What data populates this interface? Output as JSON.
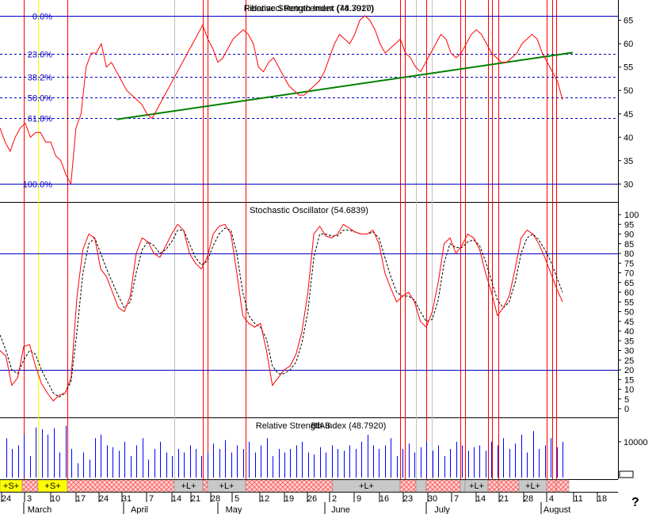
{
  "chart_data": [
    {
      "type": "line",
      "title": "Relative Strength Index (48.7920)",
      "overlay_title": "Fibonacci Retracement (74.3017)",
      "ylim": [
        27,
        68
      ],
      "y_ticks": [
        30,
        35,
        40,
        45,
        50,
        55,
        60,
        65
      ],
      "fib_levels": [
        {
          "label": "0.0%",
          "value": 66.0
        },
        {
          "label": "23.6%",
          "value": 57.9
        },
        {
          "label": "38.2%",
          "value": 52.9
        },
        {
          "label": "50.0%",
          "value": 48.6
        },
        {
          "label": "61.8%",
          "value": 44.1
        },
        {
          "label": "100.0%",
          "value": 30.1
        }
      ],
      "trendline": {
        "start_index": 23,
        "start_value": 43.8,
        "end_index": 113,
        "end_value": 58.1
      },
      "series": [
        {
          "color": "#ff0000",
          "values": [
            42,
            39,
            37,
            40,
            42,
            43,
            40,
            41,
            41,
            39,
            39,
            36,
            35,
            32,
            30,
            42,
            45,
            55,
            58,
            58,
            60,
            55,
            56,
            54,
            52,
            50,
            49,
            48,
            47,
            45,
            44,
            46,
            48,
            50,
            52,
            54,
            56,
            58,
            60,
            62,
            64,
            61,
            59,
            56,
            57,
            59,
            61,
            62,
            63,
            62,
            60,
            55,
            54,
            56,
            57,
            55,
            53,
            51,
            50,
            49,
            49,
            50,
            51,
            52,
            54,
            57,
            60,
            62,
            61,
            60,
            62,
            65,
            66,
            65,
            63,
            60,
            58,
            59,
            60,
            61,
            58,
            57,
            55,
            54,
            56,
            58,
            60,
            62,
            61,
            58,
            57,
            58,
            60,
            62,
            63,
            62,
            60,
            58,
            57,
            56,
            56,
            57,
            58,
            60,
            61,
            62,
            61,
            58,
            56,
            54,
            52,
            48
          ]
        }
      ]
    },
    {
      "type": "line",
      "title": "Stochastic Oscillator (54.6839)",
      "ylim": [
        0,
        100
      ],
      "y_ticks": [
        0,
        5,
        10,
        15,
        20,
        25,
        30,
        35,
        40,
        45,
        50,
        55,
        60,
        65,
        70,
        75,
        80,
        85,
        90,
        95,
        100
      ],
      "levels": [
        20,
        80
      ],
      "series": [
        {
          "color": "#ff0000",
          "style": "solid",
          "values": [
            30,
            27,
            12,
            16,
            32,
            33,
            22,
            13,
            8,
            4,
            7,
            8,
            16,
            58,
            82,
            90,
            88,
            72,
            68,
            60,
            52,
            50,
            58,
            80,
            88,
            86,
            80,
            78,
            84,
            90,
            95,
            92,
            80,
            75,
            72,
            78,
            90,
            94,
            95,
            90,
            70,
            48,
            44,
            42,
            44,
            30,
            12,
            16,
            20,
            22,
            28,
            40,
            60,
            90,
            94,
            89,
            88,
            90,
            95,
            93,
            91,
            90,
            90,
            92,
            85,
            70,
            62,
            55,
            58,
            60,
            55,
            45,
            42,
            50,
            65,
            85,
            88,
            80,
            84,
            90,
            88,
            82,
            70,
            60,
            48,
            52,
            58,
            72,
            88,
            92,
            90,
            85,
            78,
            70,
            62,
            55
          ]
        },
        {
          "color": "#000000",
          "style": "dashed",
          "values": [
            38,
            30,
            20,
            18,
            25,
            30,
            28,
            20,
            14,
            8,
            6,
            8,
            14,
            40,
            70,
            85,
            88,
            80,
            72,
            65,
            58,
            52,
            55,
            70,
            82,
            86,
            84,
            80,
            82,
            86,
            92,
            92,
            85,
            78,
            74,
            76,
            84,
            90,
            93,
            92,
            80,
            60,
            48,
            44,
            42,
            36,
            22,
            18,
            18,
            20,
            24,
            34,
            50,
            78,
            90,
            90,
            89,
            89,
            92,
            92,
            91,
            90,
            90,
            91,
            88,
            78,
            68,
            60,
            58,
            58,
            56,
            50,
            45,
            46,
            56,
            75,
            85,
            83,
            83,
            86,
            87,
            84,
            76,
            66,
            56,
            52,
            55,
            65,
            80,
            88,
            90,
            87,
            82,
            76,
            68,
            60
          ]
        }
      ]
    },
    {
      "type": "bar",
      "title": "Relative Strength Index (48.7920)",
      "overlay_title": "BIAS",
      "y_ticks": [
        10000
      ],
      "values": [
        11000,
        8000,
        9000,
        12000,
        6000,
        14000,
        13500,
        12000,
        13800,
        7000,
        14500,
        8000,
        4000,
        7000,
        5000,
        11000,
        12000,
        9000,
        8500,
        7500,
        10000,
        6000,
        9000,
        11000,
        5000,
        8000,
        10000,
        7000,
        6000,
        8000,
        7000,
        9000,
        8000,
        6000,
        7000,
        9500,
        8000,
        10500,
        7000,
        9000,
        8000,
        10000,
        7000,
        9000,
        11000,
        6000,
        8000,
        7000,
        8000,
        9000,
        10000,
        7000,
        6500,
        8500,
        7000,
        9000,
        8000,
        7500,
        9000,
        8000,
        10000,
        12000,
        9000,
        8000,
        9000,
        11000,
        6000,
        8000,
        9500,
        7000,
        8500,
        10000,
        7500,
        9000,
        6000,
        8000,
        10000,
        9000,
        7500,
        8500,
        9000,
        7500,
        10000,
        9000,
        11000,
        8000,
        9500,
        12000,
        7000,
        13000,
        8000,
        9000,
        11000,
        8500,
        10000
      ]
    }
  ],
  "band_labels": [
    "+S+",
    "+S+",
    "+L+",
    "+L+",
    "+L+",
    "+L+",
    "+L+",
    "+L+"
  ],
  "date_ticks": [
    "24",
    "3",
    "10",
    "17",
    "24",
    "31",
    "7",
    "14",
    "21",
    "28",
    "5",
    "12",
    "19",
    "26",
    "2",
    "9",
    "16",
    "23",
    "30",
    "7",
    "14",
    "21",
    "28",
    "4",
    "11",
    "18"
  ],
  "month_labels": [
    "March",
    "April",
    "May",
    "June",
    "July",
    "August"
  ],
  "help_glyph": "?",
  "colors": {
    "price": "#ff0000",
    "signal": "#000000",
    "grid": "#0000c0",
    "trend": "#008000",
    "bars": "#0000ff",
    "marker": "#ff0000",
    "yellow_marker": "#ffff00"
  }
}
